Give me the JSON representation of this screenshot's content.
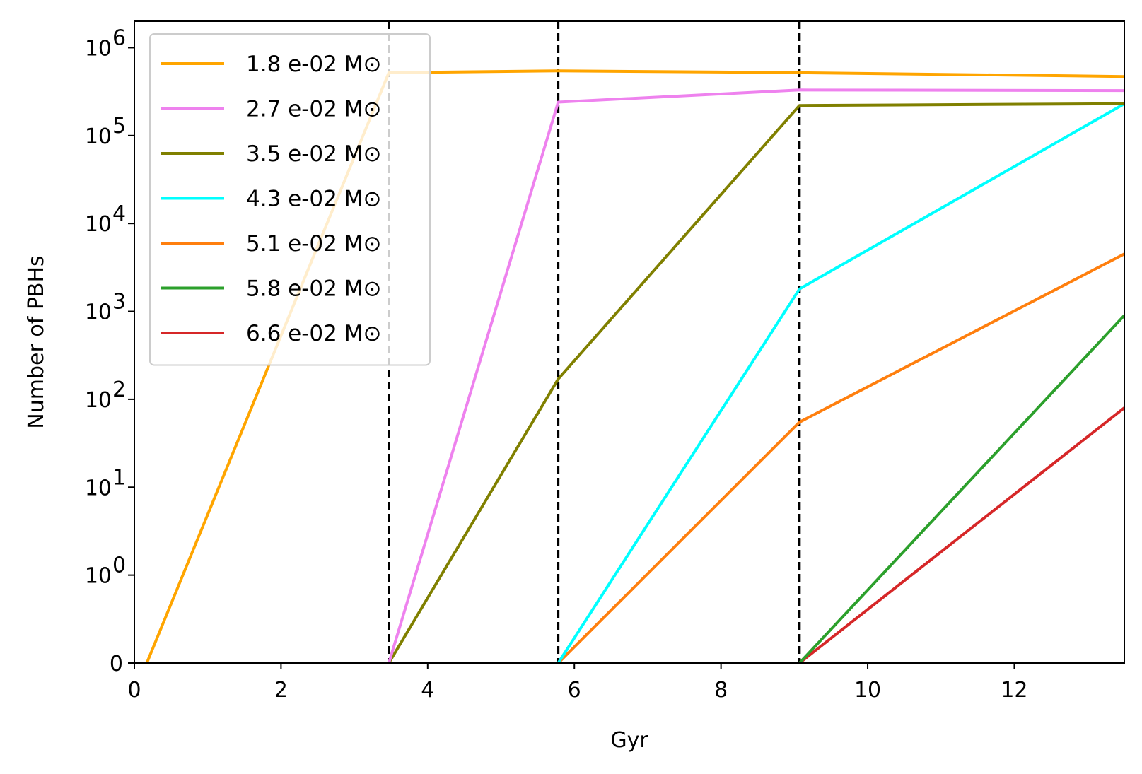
{
  "chart_data": {
    "type": "line",
    "xlabel": "Gyr",
    "ylabel": "Number of PBHs",
    "xlim": [
      0,
      13.5
    ],
    "yscale": "symlog",
    "ylim": [
      0,
      2000000
    ],
    "x_ticks": [
      0,
      2,
      4,
      6,
      8,
      10,
      12
    ],
    "y_ticks": [
      {
        "value": 0,
        "mantissa": "0",
        "exp": ""
      },
      {
        "value": 1,
        "mantissa": "10",
        "exp": "0"
      },
      {
        "value": 10,
        "mantissa": "10",
        "exp": "1"
      },
      {
        "value": 100,
        "mantissa": "10",
        "exp": "2"
      },
      {
        "value": 1000,
        "mantissa": "10",
        "exp": "3"
      },
      {
        "value": 10000,
        "mantissa": "10",
        "exp": "4"
      },
      {
        "value": 100000,
        "mantissa": "10",
        "exp": "5"
      },
      {
        "value": 1000000,
        "mantissa": "10",
        "exp": "6"
      }
    ],
    "grid": false,
    "legend_position": "upper-left",
    "vlines": [
      3.47,
      5.78,
      9.07
    ],
    "series": [
      {
        "name": "1.8 e-02 M⊙",
        "color": "#ffa500",
        "x": [
          0.17,
          3.47,
          5.78,
          9.07,
          13.5
        ],
        "y": [
          0,
          520000,
          545000,
          520000,
          470000
        ]
      },
      {
        "name": "2.7 e-02 M⊙",
        "color": "#ee82ee",
        "x": [
          0.17,
          3.47,
          5.78,
          9.07,
          13.5
        ],
        "y": [
          0,
          0,
          240000,
          330000,
          325000
        ]
      },
      {
        "name": "3.5 e-02 M⊙",
        "color": "#808000",
        "x": [
          0.17,
          3.47,
          5.78,
          9.07,
          13.5
        ],
        "y": [
          0,
          0,
          170,
          220000,
          230000
        ]
      },
      {
        "name": "4.3 e-02 M⊙",
        "color": "#00ffff",
        "x": [
          0.17,
          3.47,
          5.78,
          9.07,
          13.5
        ],
        "y": [
          0,
          0,
          0,
          1800,
          230000
        ]
      },
      {
        "name": "5.1 e-02 M⊙",
        "color": "#ff7f0e",
        "x": [
          0.17,
          3.47,
          5.78,
          9.07,
          13.5
        ],
        "y": [
          0,
          0,
          0,
          55,
          4500
        ]
      },
      {
        "name": "5.8 e-02 M⊙",
        "color": "#2ca02c",
        "x": [
          0.17,
          3.47,
          5.78,
          9.07,
          13.5
        ],
        "y": [
          0,
          0,
          0,
          0,
          900
        ]
      },
      {
        "name": "6.6 e-02 M⊙",
        "color": "#d62728",
        "x": [
          0.17,
          3.47,
          5.78,
          9.07,
          13.5
        ],
        "y": [
          0,
          0,
          0,
          0,
          80
        ]
      }
    ]
  }
}
